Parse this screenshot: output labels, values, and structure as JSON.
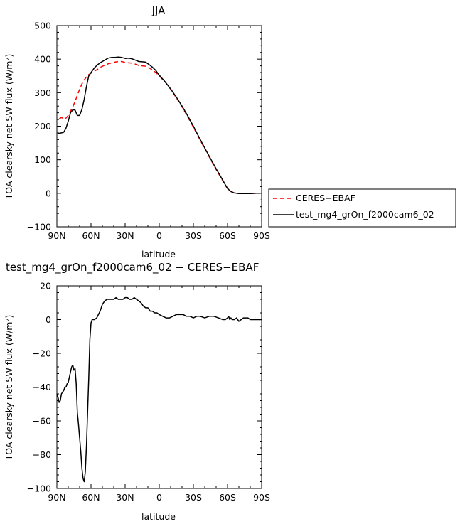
{
  "chart_data": [
    {
      "type": "line",
      "title": "JJA",
      "xlabel": "latitude",
      "ylabel": "TOA clearsky net SW flux (W/m²)",
      "xlim": [
        90,
        -90
      ],
      "ylim": [
        -100,
        500
      ],
      "x_ticks": [
        "90N",
        "60N",
        "30N",
        "0",
        "30S",
        "60S",
        "90S"
      ],
      "y_ticks": [
        "−100",
        "0",
        "100",
        "200",
        "300",
        "400",
        "500"
      ],
      "legend_position": "right",
      "series": [
        {
          "name": "CERES−EBAF",
          "color": "#ff0000",
          "style": "dashed",
          "x": [
            88,
            86,
            84,
            82,
            80,
            78,
            76,
            74,
            72,
            70,
            68,
            66,
            64,
            62,
            60,
            57,
            54,
            51,
            48,
            45,
            42,
            39,
            36,
            33,
            30,
            27,
            24,
            21,
            18,
            15,
            12,
            9,
            6,
            3,
            0,
            -5,
            -10,
            -15,
            -20,
            -25,
            -30,
            -35,
            -40,
            -45,
            -50,
            -55,
            -58,
            -60,
            -62,
            -64,
            -66,
            -68,
            -70,
            -75,
            -80,
            -85,
            -89
          ],
          "values": [
            222,
            226,
            222,
            224,
            232,
            244,
            258,
            274,
            292,
            310,
            326,
            338,
            347,
            354,
            358,
            364,
            370,
            377,
            382,
            386,
            389,
            391,
            393,
            393,
            390,
            389,
            388,
            385,
            381,
            380,
            379,
            374,
            368,
            360,
            350,
            332,
            310,
            285,
            258,
            228,
            197,
            165,
            133,
            102,
            71,
            42,
            24,
            14,
            7,
            3,
            1,
            0,
            -1,
            -1,
            -1,
            0,
            0
          ]
        },
        {
          "name": "test_mg4_grOn_f2000cam6_02",
          "color": "#000000",
          "style": "solid",
          "x": [
            89,
            86,
            84,
            82,
            80,
            78,
            76,
            74,
            72,
            70,
            68,
            66,
            64,
            62,
            60,
            57,
            54,
            51,
            48,
            45,
            42,
            39,
            36,
            33,
            30,
            27,
            24,
            21,
            18,
            15,
            12,
            9,
            6,
            3,
            0,
            -5,
            -10,
            -15,
            -20,
            -25,
            -30,
            -35,
            -40,
            -45,
            -50,
            -55,
            -58,
            -60,
            -62,
            -64,
            -66,
            -68,
            -70,
            -75,
            -80,
            -85,
            -89
          ],
          "values": [
            178,
            180,
            182,
            194,
            215,
            240,
            249,
            248,
            232,
            232,
            250,
            280,
            318,
            350,
            360,
            374,
            384,
            391,
            397,
            403,
            405,
            405,
            406,
            405,
            402,
            403,
            401,
            397,
            393,
            392,
            391,
            384,
            376,
            366,
            352,
            333,
            311,
            287,
            260,
            231,
            200,
            167,
            135,
            104,
            73,
            44,
            26,
            15,
            8,
            4,
            1,
            0,
            -1,
            -1,
            -1,
            0,
            0
          ]
        }
      ]
    },
    {
      "type": "line",
      "title": "test_mg4_grOn_f2000cam6_02 − CERES−EBAF",
      "xlabel": "latitude",
      "ylabel": "TOA clearsky net SW flux (W/m²)",
      "xlim": [
        90,
        -90
      ],
      "ylim": [
        -100,
        20
      ],
      "x_ticks": [
        "90N",
        "60N",
        "30N",
        "0",
        "30S",
        "60S",
        "90S"
      ],
      "y_ticks": [
        "−100",
        "−80",
        "−60",
        "−40",
        "−20",
        "0",
        "20"
      ],
      "series": [
        {
          "color": "#000000",
          "style": "solid",
          "x": [
            90,
            89,
            88,
            87,
            86,
            85,
            84,
            83,
            82,
            81,
            80,
            79,
            78,
            77,
            76,
            75,
            74,
            73,
            72,
            71,
            70,
            69,
            68,
            67,
            66,
            65,
            64,
            63,
            62,
            61,
            60,
            59,
            57,
            55,
            52,
            50,
            48,
            46,
            44,
            42,
            40,
            38,
            36,
            34,
            32,
            30,
            28,
            26,
            24,
            22,
            20,
            18,
            16,
            14,
            12,
            10,
            8,
            6,
            4,
            2,
            0,
            -3,
            -6,
            -9,
            -12,
            -15,
            -18,
            -21,
            -24,
            -27,
            -30,
            -33,
            -36,
            -40,
            -44,
            -48,
            -52,
            -56,
            -58,
            -60,
            -61,
            -62,
            -63,
            -64,
            -66,
            -68,
            -70,
            -72,
            -74,
            -76,
            -78,
            -80,
            -82,
            -85,
            -90
          ],
          "values": [
            -44,
            -46,
            -49,
            -48,
            -44,
            -43,
            -42,
            -40,
            -40,
            -38,
            -37,
            -34,
            -31,
            -28,
            -27,
            -30,
            -29,
            -38,
            -55,
            -62,
            -70,
            -78,
            -88,
            -94,
            -96,
            -90,
            -75,
            -55,
            -35,
            -12,
            -2,
            0,
            0,
            1,
            5,
            9,
            11,
            12,
            12,
            12,
            12,
            13,
            12,
            12,
            12,
            13,
            13,
            12,
            12,
            13,
            12,
            11,
            10,
            8,
            7,
            7,
            5,
            5,
            4,
            4,
            3,
            2,
            1,
            1,
            2,
            3,
            3,
            3,
            2,
            2,
            1,
            2,
            2,
            1,
            2,
            2,
            1,
            0,
            0,
            1,
            2,
            0,
            1,
            0,
            0,
            1,
            -1,
            0,
            1,
            1,
            1,
            0,
            0,
            0,
            0
          ]
        }
      ]
    }
  ]
}
